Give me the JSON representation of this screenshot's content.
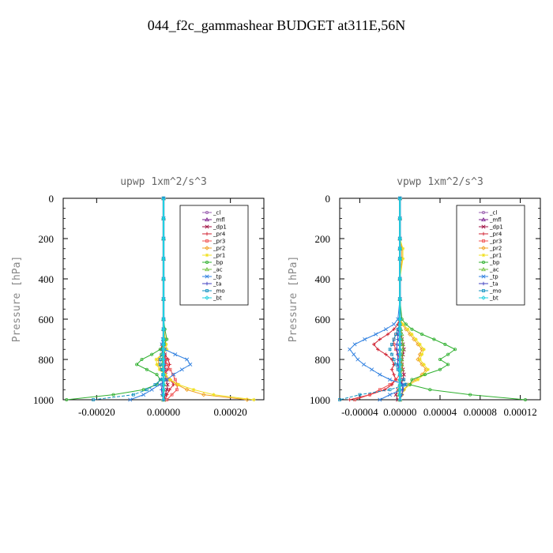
{
  "title": "044_f2c_gammashear  BUDGET at311E,56N",
  "chart_data": [
    {
      "type": "line",
      "title": "upwp   1xm^2/s^3",
      "ylabel": "Pressure [hPa]",
      "xlabel": "",
      "xlim": [
        -0.0003,
        0.0003
      ],
      "ylim": [
        1000,
        0
      ],
      "xticks": [
        -0.0002,
        0.0,
        0.0002
      ],
      "xtick_labels": [
        "-0.00020",
        "0.00000",
        "0.00020"
      ],
      "yticks": [
        0,
        200,
        400,
        600,
        800,
        1000
      ],
      "ytick_labels": [
        "0",
        "200",
        "400",
        "600",
        "800",
        "1000"
      ],
      "legend_position": "top-right",
      "y": [
        0,
        100,
        200,
        300,
        400,
        500,
        600,
        650,
        700,
        725,
        750,
        775,
        800,
        825,
        850,
        875,
        900,
        925,
        950,
        975,
        1000
      ],
      "series": [
        {
          "name": "_cl",
          "color": "#9a5fb0",
          "values": [
            0,
            0,
            0,
            0,
            0,
            0,
            0,
            0,
            0,
            0,
            0,
            0,
            0,
            0,
            0,
            0,
            0,
            0,
            0,
            0,
            0
          ]
        },
        {
          "name": "_mfl",
          "color": "#7a1e8c",
          "values": [
            0,
            0,
            0,
            0,
            0,
            0,
            0,
            0,
            0,
            0,
            0,
            0,
            0,
            0,
            0,
            0,
            0,
            0,
            0,
            0,
            0
          ]
        },
        {
          "name": "_dp1",
          "color": "#a01040",
          "values": [
            0,
            0,
            0,
            0,
            0,
            0,
            0,
            0,
            0,
            0,
            2e-06,
            4e-06,
            6e-06,
            5e-06,
            4e-06,
            6e-06,
            8e-06,
            1.2e-05,
            1e-05,
            5e-06,
            2e-06
          ]
        },
        {
          "name": "_pr4",
          "color": "#d02030",
          "values": [
            0,
            0,
            0,
            0,
            0,
            0,
            0,
            0,
            2e-06,
            -4e-06,
            -8e-06,
            4e-06,
            1.4e-05,
            1.8e-05,
            1.2e-05,
            4e-06,
            2e-05,
            3e-05,
            1.8e-05,
            1e-05,
            5e-06
          ]
        },
        {
          "name": "_pr3",
          "color": "#f05050",
          "values": [
            0,
            0,
            0,
            0,
            0,
            0,
            0,
            0,
            0,
            0,
            0,
            0,
            6e-06,
            1e-05,
            2e-05,
            2.8e-05,
            3.5e-05,
            4.2e-05,
            4e-05,
            2.5e-05,
            1e-05
          ]
        },
        {
          "name": "_pr2",
          "color": "#f0a020",
          "values": [
            0,
            0,
            0,
            0,
            0,
            0,
            0,
            2e-06,
            5e-06,
            6e-06,
            3e-06,
            -6e-06,
            -1.6e-05,
            -1.4e-05,
            -8e-06,
            4e-06,
            1.8e-05,
            4e-05,
            7e-05,
            0.00012,
            0.00025
          ]
        },
        {
          "name": "_pr1",
          "color": "#f0e020",
          "values": [
            0,
            0,
            0,
            0,
            0,
            0,
            0,
            0,
            4e-06,
            8e-06,
            1e-05,
            -6e-06,
            -2.2e-05,
            -2e-05,
            -1.2e-05,
            5e-06,
            2e-05,
            4.5e-05,
            9e-05,
            0.00015,
            0.00027
          ]
        },
        {
          "name": "_bp",
          "color": "#30b030",
          "values": [
            0,
            0,
            0,
            0,
            0,
            0,
            0,
            4e-06,
            1e-05,
            2e-06,
            -1e-05,
            -3.5e-05,
            -6.5e-05,
            -8e-05,
            -5e-05,
            -2e-05,
            -1e-05,
            -2e-05,
            -6e-05,
            -0.00015,
            -0.00029
          ]
        },
        {
          "name": "_ac",
          "color": "#70c040",
          "values": [
            0,
            0,
            0,
            0,
            0,
            0,
            0,
            0,
            0,
            0,
            0,
            -2e-06,
            -4e-06,
            -4e-06,
            -2e-06,
            0,
            2e-06,
            2e-06,
            0,
            -2e-06,
            0
          ]
        },
        {
          "name": "_tp",
          "color": "#3080e0",
          "values": [
            0,
            0,
            0,
            0,
            0,
            0,
            0,
            0,
            -2e-06,
            -5e-06,
            4e-06,
            3.5e-05,
            7e-05,
            8e-05,
            5.5e-05,
            3e-05,
            1e-05,
            -1.2e-05,
            -3.5e-05,
            -6e-05,
            -0.0001
          ]
        },
        {
          "name": "_ta",
          "color": "#4040c0",
          "values": [
            0,
            0,
            0,
            0,
            0,
            0,
            0,
            0,
            0,
            0,
            0,
            0,
            2e-06,
            2e-06,
            0,
            0,
            -2e-06,
            -4e-06,
            -6e-06,
            -4e-06,
            0
          ]
        },
        {
          "name": "_mo",
          "color": "#1090c0",
          "values": [
            0,
            0,
            0,
            0,
            0,
            0,
            0,
            0,
            0,
            0,
            -2e-06,
            -6e-06,
            -1e-05,
            -1e-05,
            -6e-06,
            -2e-06,
            -8e-06,
            -2.5e-05,
            -5e-05,
            -9e-05,
            -0.00021
          ]
        },
        {
          "name": "_bt",
          "color": "#20d0e0",
          "values": [
            0,
            0,
            0,
            0,
            0,
            0,
            0,
            0,
            0,
            0,
            0,
            0,
            0,
            0,
            0,
            0,
            0,
            0,
            0,
            0,
            0
          ]
        }
      ]
    },
    {
      "type": "line",
      "title": "vpwp   1xm^2/s^3",
      "ylabel": "Pressure [hPa]",
      "xlabel": "",
      "xlim": [
        -6e-05,
        0.00014
      ],
      "ylim": [
        1000,
        0
      ],
      "xticks": [
        -4e-05,
        0.0,
        4e-05,
        8e-05,
        0.00012
      ],
      "xtick_labels": [
        "-0.00004",
        "0.00000",
        "0.00004",
        "0.00008",
        "0.00012"
      ],
      "yticks": [
        0,
        200,
        400,
        600,
        800,
        1000
      ],
      "ytick_labels": [
        "0",
        "200",
        "400",
        "600",
        "800",
        "1000"
      ],
      "legend_position": "top-right",
      "y": [
        0,
        100,
        200,
        250,
        300,
        400,
        500,
        600,
        625,
        650,
        675,
        700,
        725,
        750,
        775,
        800,
        825,
        850,
        875,
        900,
        925,
        950,
        975,
        1000
      ],
      "series": [
        {
          "name": "_cl",
          "color": "#9a5fb0",
          "values": [
            0,
            0,
            0,
            0,
            0,
            0,
            0,
            0,
            0,
            0,
            0,
            0,
            0,
            0,
            0,
            0,
            0,
            0,
            0,
            0,
            0,
            0,
            0,
            0
          ]
        },
        {
          "name": "_mfl",
          "color": "#7a1e8c",
          "values": [
            0,
            0,
            0,
            0,
            0,
            0,
            0,
            0,
            0,
            0,
            0,
            0,
            0,
            0,
            0,
            0,
            0,
            0,
            0,
            0,
            0,
            0,
            0,
            0
          ]
        },
        {
          "name": "_dp1",
          "color": "#a01040",
          "values": [
            0,
            0,
            0,
            0,
            0,
            0,
            0,
            0,
            0,
            0,
            1e-06,
            2e-06,
            3e-06,
            4e-06,
            3e-06,
            2e-06,
            2e-06,
            3e-06,
            4e-06,
            3e-06,
            1e-06,
            -2e-06,
            -4e-06,
            -2e-06
          ]
        },
        {
          "name": "_pr4",
          "color": "#d02030",
          "values": [
            0,
            0,
            0,
            0,
            0,
            0,
            0,
            0,
            -2e-06,
            -6e-06,
            -1.2e-05,
            -2e-05,
            -2.6e-05,
            -2.2e-05,
            -1.4e-05,
            -8e-06,
            -6e-06,
            -8e-06,
            -6e-06,
            -4e-06,
            -8e-06,
            -1.5e-05,
            -3e-05,
            -5e-05
          ]
        },
        {
          "name": "_pr3",
          "color": "#f05050",
          "values": [
            0,
            0,
            0,
            0,
            0,
            0,
            0,
            0,
            0,
            -2e-06,
            -4e-06,
            -6e-06,
            -6e-06,
            -4e-06,
            -2e-06,
            0,
            2e-06,
            2e-06,
            0,
            -4e-06,
            -1e-05,
            -2e-05,
            -3e-05,
            -4.5e-05
          ]
        },
        {
          "name": "_pr2",
          "color": "#f0a020",
          "values": [
            0,
            0,
            0,
            2e-06,
            2e-06,
            0,
            0,
            0,
            2e-06,
            6e-06,
            1e-05,
            1.4e-05,
            1.8e-05,
            2.2e-05,
            2e-05,
            1.8e-05,
            2.2e-05,
            2.6e-05,
            2.2e-05,
            1.6e-05,
            8e-06,
            4e-06,
            2e-06,
            0
          ]
        },
        {
          "name": "_pr1",
          "color": "#f0e020",
          "values": [
            0,
            0,
            0,
            3e-06,
            3e-06,
            0,
            0,
            0,
            3e-06,
            8e-06,
            1.2e-05,
            1.6e-05,
            2e-05,
            2.4e-05,
            2.2e-05,
            2e-05,
            2.4e-05,
            2.8e-05,
            2.4e-05,
            1.8e-05,
            1e-05,
            4e-06,
            2e-06,
            0
          ]
        },
        {
          "name": "_bp",
          "color": "#30b030",
          "values": [
            0,
            0,
            0,
            0,
            0,
            0,
            0,
            2e-06,
            6e-06,
            1.2e-05,
            2.2e-05,
            3.4e-05,
            4.5e-05,
            5.5e-05,
            4.8e-05,
            4e-05,
            4.8e-05,
            4e-05,
            2.5e-05,
            1.2e-05,
            1e-05,
            3e-05,
            7e-05,
            0.000125
          ]
        },
        {
          "name": "_ac",
          "color": "#70c040",
          "values": [
            0,
            0,
            0,
            0,
            0,
            0,
            0,
            0,
            0,
            1e-06,
            2e-06,
            2e-06,
            3e-06,
            3e-06,
            2e-06,
            2e-06,
            2e-06,
            2e-06,
            1e-06,
            0,
            0,
            -1e-06,
            -1e-06,
            0
          ]
        },
        {
          "name": "_tp",
          "color": "#3080e0",
          "values": [
            0,
            0,
            0,
            0,
            0,
            0,
            0,
            -2e-06,
            -6e-06,
            -1.4e-05,
            -2.4e-05,
            -3.5e-05,
            -4.5e-05,
            -5e-05,
            -4.6e-05,
            -4.2e-05,
            -3.6e-05,
            -2.8e-05,
            -2e-05,
            -1e-05,
            5e-06,
            2e-06,
            -1e-05,
            -2e-05
          ]
        },
        {
          "name": "_ta",
          "color": "#4040c0",
          "values": [
            0,
            0,
            0,
            0,
            0,
            0,
            0,
            0,
            0,
            -1e-06,
            -2e-06,
            -2e-06,
            -3e-06,
            -3e-06,
            -2e-06,
            -2e-06,
            -2e-06,
            -1e-06,
            0,
            0,
            2e-06,
            3e-06,
            2e-06,
            0
          ]
        },
        {
          "name": "_mo",
          "color": "#1090c0",
          "values": [
            0,
            0,
            0,
            0,
            0,
            0,
            0,
            0,
            0,
            -2e-06,
            -4e-06,
            -6e-06,
            -8e-06,
            -1e-05,
            -8e-06,
            -6e-06,
            -4e-06,
            -2e-06,
            0,
            4e-06,
            6e-06,
            -1e-05,
            -4e-05,
            -6e-05
          ]
        },
        {
          "name": "_bt",
          "color": "#20d0e0",
          "values": [
            0,
            0,
            0,
            0,
            0,
            0,
            0,
            0,
            0,
            0,
            0,
            0,
            0,
            0,
            0,
            0,
            0,
            0,
            0,
            0,
            0,
            0,
            0,
            0
          ]
        }
      ]
    }
  ]
}
